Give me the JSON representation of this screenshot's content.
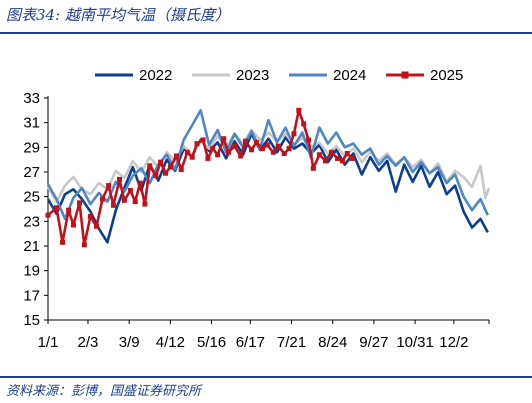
{
  "header": {
    "figure_label": "图表34:",
    "title": "越南平均气温（摄氏度）"
  },
  "source": "资料来源：彭博，国盛证券研究所",
  "colors": {
    "accent": "#1f3f8e"
  },
  "chart_data": {
    "type": "line",
    "title": "越南平均气温（摄氏度）",
    "xlabel": "",
    "ylabel": "",
    "x_tick_labels": [
      "1/1",
      "2/3",
      "3/9",
      "4/12",
      "5/16",
      "6/17",
      "7/21",
      "8/24",
      "9/27",
      "10/31",
      "12/2"
    ],
    "x_tick_days": [
      1,
      34,
      68,
      102,
      136,
      168,
      202,
      236,
      270,
      304,
      336
    ],
    "x_range_days": [
      1,
      365
    ],
    "y_ticks": [
      15,
      17,
      19,
      21,
      23,
      25,
      27,
      29,
      31,
      33
    ],
    "ylim": [
      15,
      33
    ],
    "grid": false,
    "legend": {
      "position": "top"
    },
    "series": [
      {
        "name": "2022",
        "color": "#0b3d91",
        "width": 2.6,
        "marker": false,
        "points": [
          [
            1,
            24.8
          ],
          [
            8,
            23.6
          ],
          [
            15,
            25.2
          ],
          [
            22,
            25.6
          ],
          [
            29,
            24.8
          ],
          [
            36,
            23.8
          ],
          [
            43,
            22.4
          ],
          [
            50,
            21.3
          ],
          [
            57,
            23.9
          ],
          [
            64,
            25.7
          ],
          [
            71,
            27.4
          ],
          [
            78,
            25.5
          ],
          [
            85,
            27.6
          ],
          [
            92,
            26.3
          ],
          [
            99,
            28.0
          ],
          [
            106,
            27.1
          ],
          [
            113,
            28.9
          ],
          [
            120,
            28.3
          ],
          [
            127,
            29.6
          ],
          [
            134,
            28.7
          ],
          [
            141,
            29.4
          ],
          [
            148,
            28.1
          ],
          [
            155,
            29.5
          ],
          [
            162,
            28.4
          ],
          [
            169,
            30.1
          ],
          [
            176,
            28.8
          ],
          [
            183,
            29.7
          ],
          [
            190,
            28.6
          ],
          [
            197,
            29.8
          ],
          [
            204,
            28.9
          ],
          [
            211,
            29.3
          ],
          [
            218,
            28.5
          ],
          [
            225,
            29.2
          ],
          [
            232,
            27.8
          ],
          [
            239,
            28.8
          ],
          [
            246,
            27.6
          ],
          [
            253,
            28.5
          ],
          [
            260,
            26.8
          ],
          [
            267,
            28.2
          ],
          [
            274,
            27.1
          ],
          [
            281,
            27.9
          ],
          [
            288,
            25.4
          ],
          [
            295,
            27.6
          ],
          [
            302,
            26.2
          ],
          [
            309,
            27.5
          ],
          [
            316,
            25.8
          ],
          [
            323,
            27.0
          ],
          [
            330,
            25.2
          ],
          [
            337,
            25.9
          ],
          [
            344,
            23.8
          ],
          [
            351,
            22.5
          ],
          [
            358,
            23.2
          ],
          [
            364,
            22.1
          ]
        ]
      },
      {
        "name": "2023",
        "color": "#c8c8c8",
        "width": 2.6,
        "marker": false,
        "points": [
          [
            1,
            25.8
          ],
          [
            8,
            24.6
          ],
          [
            15,
            25.9
          ],
          [
            22,
            26.6
          ],
          [
            29,
            25.6
          ],
          [
            36,
            25.2
          ],
          [
            43,
            26.1
          ],
          [
            50,
            25.6
          ],
          [
            57,
            27.1
          ],
          [
            64,
            26.5
          ],
          [
            71,
            27.9
          ],
          [
            78,
            27.0
          ],
          [
            85,
            28.2
          ],
          [
            92,
            27.4
          ],
          [
            99,
            28.6
          ],
          [
            106,
            27.9
          ],
          [
            113,
            29.1
          ],
          [
            120,
            28.4
          ],
          [
            127,
            29.5
          ],
          [
            134,
            28.9
          ],
          [
            141,
            29.9
          ],
          [
            148,
            29.0
          ],
          [
            155,
            30.1
          ],
          [
            162,
            29.3
          ],
          [
            169,
            30.4
          ],
          [
            176,
            29.6
          ],
          [
            183,
            30.2
          ],
          [
            190,
            29.5
          ],
          [
            197,
            30.1
          ],
          [
            204,
            29.2
          ],
          [
            211,
            29.8
          ],
          [
            218,
            29.0
          ],
          [
            225,
            29.4
          ],
          [
            232,
            28.5
          ],
          [
            239,
            29.1
          ],
          [
            246,
            28.3
          ],
          [
            253,
            28.9
          ],
          [
            260,
            27.8
          ],
          [
            267,
            28.6
          ],
          [
            274,
            27.9
          ],
          [
            281,
            28.5
          ],
          [
            288,
            27.6
          ],
          [
            295,
            28.2
          ],
          [
            302,
            27.4
          ],
          [
            309,
            28.0
          ],
          [
            316,
            26.9
          ],
          [
            323,
            27.7
          ],
          [
            330,
            26.2
          ],
          [
            337,
            27.1
          ],
          [
            344,
            26.6
          ],
          [
            351,
            25.8
          ],
          [
            358,
            27.5
          ],
          [
            362,
            24.9
          ],
          [
            365,
            25.7
          ]
        ]
      },
      {
        "name": "2024",
        "color": "#4f86c6",
        "width": 2.6,
        "marker": false,
        "points": [
          [
            1,
            26.0
          ],
          [
            8,
            24.8
          ],
          [
            15,
            23.2
          ],
          [
            22,
            24.9
          ],
          [
            29,
            25.7
          ],
          [
            36,
            24.4
          ],
          [
            43,
            25.3
          ],
          [
            50,
            24.6
          ],
          [
            57,
            26.2
          ],
          [
            64,
            25.4
          ],
          [
            71,
            26.7
          ],
          [
            78,
            27.3
          ],
          [
            85,
            26.1
          ],
          [
            92,
            27.6
          ],
          [
            99,
            28.4
          ],
          [
            106,
            27.2
          ],
          [
            113,
            29.6
          ],
          [
            120,
            30.8
          ],
          [
            127,
            32.0
          ],
          [
            134,
            29.2
          ],
          [
            141,
            30.4
          ],
          [
            148,
            28.6
          ],
          [
            155,
            30.1
          ],
          [
            162,
            29.0
          ],
          [
            169,
            30.3
          ],
          [
            176,
            28.9
          ],
          [
            183,
            31.2
          ],
          [
            190,
            29.4
          ],
          [
            197,
            30.6
          ],
          [
            204,
            29.1
          ],
          [
            211,
            30.2
          ],
          [
            218,
            28.2
          ],
          [
            225,
            30.6
          ],
          [
            232,
            29.3
          ],
          [
            239,
            30.2
          ],
          [
            246,
            29.0
          ],
          [
            253,
            29.3
          ],
          [
            260,
            28.4
          ],
          [
            267,
            28.9
          ],
          [
            274,
            27.6
          ],
          [
            281,
            28.3
          ],
          [
            288,
            27.5
          ],
          [
            295,
            28.2
          ],
          [
            302,
            27.0
          ],
          [
            309,
            27.8
          ],
          [
            316,
            26.9
          ],
          [
            323,
            27.4
          ],
          [
            330,
            26.1
          ],
          [
            337,
            26.8
          ],
          [
            344,
            25.0
          ],
          [
            351,
            23.9
          ],
          [
            358,
            24.8
          ],
          [
            364,
            23.5
          ]
        ]
      },
      {
        "name": "2025",
        "color": "#c0121b",
        "width": 2.6,
        "marker": true,
        "points": [
          [
            1,
            23.5
          ],
          [
            8,
            24.1
          ],
          [
            13,
            21.3
          ],
          [
            18,
            23.9
          ],
          [
            22,
            22.7
          ],
          [
            27,
            24.5
          ],
          [
            31,
            21.1
          ],
          [
            36,
            23.4
          ],
          [
            41,
            22.6
          ],
          [
            46,
            24.8
          ],
          [
            51,
            25.9
          ],
          [
            55,
            24.3
          ],
          [
            60,
            26.4
          ],
          [
            64,
            24.7
          ],
          [
            69,
            25.5
          ],
          [
            73,
            24.6
          ],
          [
            77,
            26.1
          ],
          [
            81,
            24.4
          ],
          [
            85,
            27.5
          ],
          [
            90,
            26.7
          ],
          [
            94,
            27.8
          ],
          [
            98,
            26.9
          ],
          [
            102,
            27.4
          ],
          [
            107,
            28.3
          ],
          [
            111,
            27.2
          ],
          [
            116,
            28.6
          ],
          [
            120,
            28.2
          ],
          [
            124,
            29.3
          ],
          [
            129,
            29.6
          ],
          [
            133,
            28.1
          ],
          [
            137,
            28.9
          ],
          [
            141,
            28.4
          ],
          [
            146,
            29.7
          ],
          [
            150,
            28.6
          ],
          [
            155,
            29.1
          ],
          [
            160,
            28.3
          ],
          [
            164,
            29.5
          ],
          [
            169,
            28.8
          ],
          [
            173,
            29.4
          ],
          [
            178,
            28.9
          ],
          [
            182,
            29.2
          ],
          [
            187,
            28.6
          ],
          [
            191,
            29.1
          ],
          [
            196,
            28.5
          ],
          [
            200,
            28.9
          ],
          [
            204,
            30.1
          ],
          [
            208,
            32.0
          ],
          [
            212,
            30.9
          ],
          [
            216,
            29.6
          ],
          [
            220,
            27.3
          ],
          [
            225,
            28.4
          ],
          [
            230,
            27.9
          ],
          [
            235,
            28.6
          ],
          [
            240,
            28.1
          ],
          [
            244,
            27.9
          ],
          [
            248,
            28.5
          ],
          [
            252,
            28.1
          ]
        ]
      }
    ]
  }
}
